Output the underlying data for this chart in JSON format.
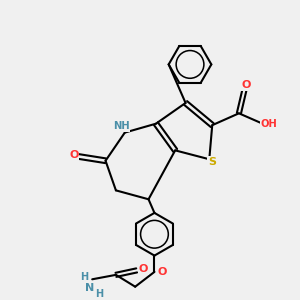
{
  "background_color": "#f0f0f0",
  "atom_colors": {
    "N": "#4a8fa8",
    "O": "#ff3333",
    "S": "#ccaa00",
    "C": "#000000",
    "H": "#4a8fa8"
  },
  "bond_color": "#000000",
  "bond_width": 1.5,
  "title": ""
}
